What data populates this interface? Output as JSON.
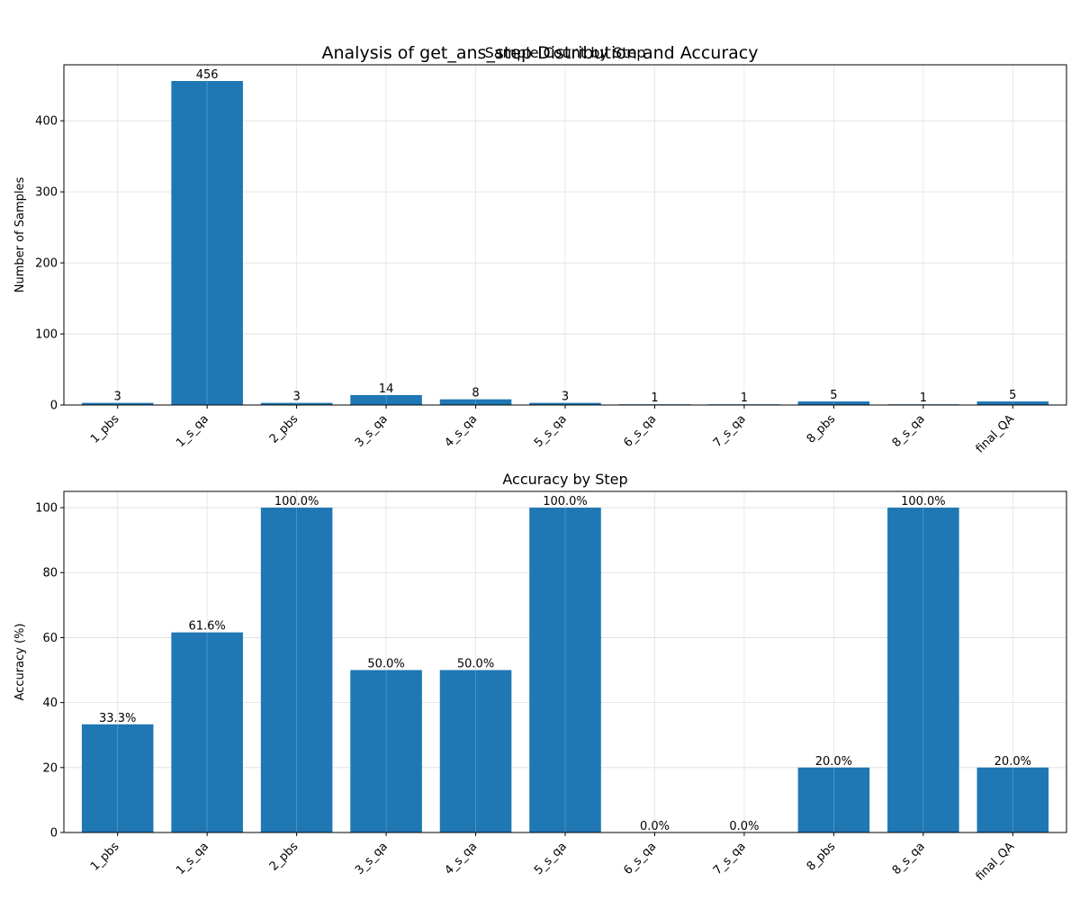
{
  "figure": {
    "suptitle": "Analysis of get_ans_step Distribution and Accuracy"
  },
  "colors": {
    "bar": "#1f77b4",
    "grid": "#dddddd",
    "axis": "#000000"
  },
  "chart_data": [
    {
      "type": "bar",
      "title": "Sample Count by Step",
      "xlabel": "",
      "ylabel": "Number of Samples",
      "categories": [
        "1_pbs",
        "1_s_qa",
        "2_pbs",
        "3_s_qa",
        "4_s_qa",
        "5_s_qa",
        "6_s_qa",
        "7_s_qa",
        "8_pbs",
        "8_s_qa",
        "final_QA"
      ],
      "values": [
        3,
        456,
        3,
        14,
        8,
        3,
        1,
        1,
        5,
        1,
        5
      ],
      "value_labels": [
        "3",
        "456",
        "3",
        "14",
        "8",
        "3",
        "1",
        "1",
        "5",
        "1",
        "5"
      ],
      "ylim": [
        0,
        478.8
      ],
      "yticks": [
        0,
        100,
        200,
        300,
        400
      ],
      "grid": true
    },
    {
      "type": "bar",
      "title": "Accuracy by Step",
      "xlabel": "",
      "ylabel": "Accuracy (%)",
      "categories": [
        "1_pbs",
        "1_s_qa",
        "2_pbs",
        "3_s_qa",
        "4_s_qa",
        "5_s_qa",
        "6_s_qa",
        "7_s_qa",
        "8_pbs",
        "8_s_qa",
        "final_QA"
      ],
      "values": [
        33.3,
        61.6,
        100.0,
        50.0,
        50.0,
        100.0,
        0.0,
        0.0,
        20.0,
        100.0,
        20.0
      ],
      "value_labels": [
        "33.3%",
        "61.6%",
        "100.0%",
        "50.0%",
        "50.0%",
        "100.0%",
        "0.0%",
        "0.0%",
        "20.0%",
        "100.0%",
        "20.0%"
      ],
      "ylim": [
        0,
        105
      ],
      "yticks": [
        0,
        20,
        40,
        60,
        80,
        100
      ],
      "grid": true
    }
  ]
}
